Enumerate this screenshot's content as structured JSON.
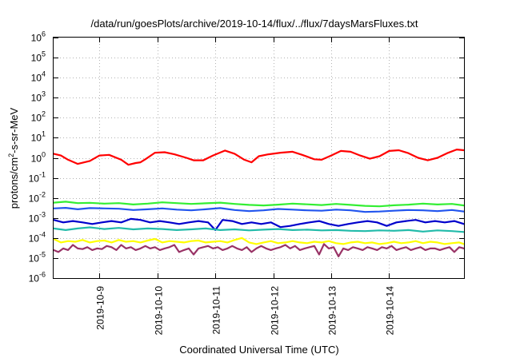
{
  "chart_data": {
    "type": "line",
    "title": "/data/run/goesPlots/archive/2019-10-14/flux/../flux/7daysMarsFluxes.txt",
    "xlabel": "Coordinated Universal Time (UTC)",
    "ylabel": {
      "base": "protons/cm",
      "sup": "2",
      "rest": "-s-sr-MeV"
    },
    "yscale": "log",
    "ylim": [
      -6,
      6
    ],
    "xlim": [
      "2019-10-08T05:00",
      "2019-10-15T07:00"
    ],
    "x_ticks": [
      "2019-10-9",
      "2019-10-10",
      "2019-10-11",
      "2019-10-12",
      "2019-10-13",
      "2019-10-14"
    ],
    "y_ticks": [
      {
        "exp": -6,
        "label": "10",
        "sup": "-6"
      },
      {
        "exp": -5,
        "label": "10",
        "sup": "-5"
      },
      {
        "exp": -4,
        "label": "10",
        "sup": "-4"
      },
      {
        "exp": -3,
        "label": "10",
        "sup": "-3"
      },
      {
        "exp": -2,
        "label": "10",
        "sup": "-2"
      },
      {
        "exp": -1,
        "label": "10",
        "sup": "-1"
      },
      {
        "exp": 0,
        "label": "10",
        "sup": "0"
      },
      {
        "exp": 1,
        "label": "10",
        "sup": "1"
      },
      {
        "exp": 2,
        "label": "10",
        "sup": "2"
      },
      {
        "exp": 3,
        "label": "10",
        "sup": "3"
      },
      {
        "exp": 4,
        "label": "10",
        "sup": "4"
      },
      {
        "exp": 5,
        "label": "10",
        "sup": "5"
      },
      {
        "exp": 6,
        "label": "10",
        "sup": "6"
      }
    ],
    "grid": true,
    "series": [
      {
        "color": "#ff0000",
        "x": [
          "2019-10-08T05:00",
          "2019-10-08T08:00",
          "2019-10-08T11:00",
          "2019-10-08T15:00",
          "2019-10-08T20:00",
          "2019-10-09T00:00",
          "2019-10-09T04:00",
          "2019-10-09T09:00",
          "2019-10-09T12:00",
          "2019-10-09T15:00",
          "2019-10-09T17:00",
          "2019-10-09T19:00",
          "2019-10-09T23:00",
          "2019-10-10T03:00",
          "2019-10-10T07:00",
          "2019-10-10T12:00",
          "2019-10-10T15:00",
          "2019-10-10T19:00",
          "2019-10-10T23:00",
          "2019-10-11T04:00",
          "2019-10-11T08:00",
          "2019-10-11T12:00",
          "2019-10-11T15:00",
          "2019-10-11T18:00",
          "2019-10-11T22:00",
          "2019-10-12T03:00",
          "2019-10-12T08:00",
          "2019-10-12T12:00",
          "2019-10-12T17:00",
          "2019-10-12T20:00",
          "2019-10-13T00:00",
          "2019-10-13T04:00",
          "2019-10-13T08:00",
          "2019-10-13T12:00",
          "2019-10-13T16:00",
          "2019-10-13T20:00",
          "2019-10-14T00:00",
          "2019-10-14T04:00",
          "2019-10-14T08:00",
          "2019-10-14T12:00",
          "2019-10-14T16:00",
          "2019-10-14T20:00",
          "2019-10-15T00:00",
          "2019-10-15T04:00",
          "2019-10-15T07:00"
        ],
        "y": [
          1.6,
          1.3,
          0.8,
          0.5,
          0.7,
          1.3,
          1.4,
          0.8,
          0.45,
          0.55,
          0.6,
          0.85,
          1.8,
          1.9,
          1.5,
          1.0,
          0.75,
          0.75,
          1.3,
          2.3,
          1.6,
          0.8,
          0.6,
          1.2,
          1.5,
          1.8,
          2.0,
          1.4,
          0.85,
          0.8,
          1.3,
          2.2,
          2.0,
          1.3,
          0.9,
          1.2,
          2.2,
          2.4,
          1.7,
          1.0,
          0.75,
          1.0,
          1.7,
          2.6,
          2.4
        ]
      },
      {
        "color": "#33ee33",
        "x": [
          "2019-10-08T05:00",
          "2019-10-08T10:00",
          "2019-10-08T15:00",
          "2019-10-08T20:00",
          "2019-10-09T02:00",
          "2019-10-09T08:00",
          "2019-10-09T14:00",
          "2019-10-09T20:00",
          "2019-10-10T02:00",
          "2019-10-10T08:00",
          "2019-10-10T14:00",
          "2019-10-10T20:00",
          "2019-10-11T02:00",
          "2019-10-11T08:00",
          "2019-10-11T14:00",
          "2019-10-11T20:00",
          "2019-10-12T02:00",
          "2019-10-12T08:00",
          "2019-10-12T14:00",
          "2019-10-12T20:00",
          "2019-10-13T02:00",
          "2019-10-13T08:00",
          "2019-10-13T14:00",
          "2019-10-13T20:00",
          "2019-10-14T02:00",
          "2019-10-14T08:00",
          "2019-10-14T14:00",
          "2019-10-14T20:00",
          "2019-10-15T02:00",
          "2019-10-15T07:00"
        ],
        "y": [
          0.0058,
          0.0065,
          0.0055,
          0.0057,
          0.0052,
          0.0055,
          0.0047,
          0.0052,
          0.006,
          0.0055,
          0.005,
          0.0054,
          0.0058,
          0.005,
          0.0045,
          0.0042,
          0.0046,
          0.0052,
          0.0048,
          0.0044,
          0.005,
          0.0045,
          0.004,
          0.0038,
          0.0043,
          0.0046,
          0.0052,
          0.0047,
          0.005,
          0.0042
        ]
      },
      {
        "color": "#2255ee",
        "x": [
          "2019-10-08T05:00",
          "2019-10-08T10:00",
          "2019-10-08T15:00",
          "2019-10-08T20:00",
          "2019-10-09T02:00",
          "2019-10-09T08:00",
          "2019-10-09T14:00",
          "2019-10-09T20:00",
          "2019-10-10T02:00",
          "2019-10-10T08:00",
          "2019-10-10T14:00",
          "2019-10-10T20:00",
          "2019-10-11T02:00",
          "2019-10-11T08:00",
          "2019-10-11T14:00",
          "2019-10-11T20:00",
          "2019-10-12T02:00",
          "2019-10-12T08:00",
          "2019-10-12T14:00",
          "2019-10-12T20:00",
          "2019-10-13T02:00",
          "2019-10-13T08:00",
          "2019-10-13T14:00",
          "2019-10-13T20:00",
          "2019-10-14T02:00",
          "2019-10-14T08:00",
          "2019-10-14T14:00",
          "2019-10-14T20:00",
          "2019-10-15T02:00",
          "2019-10-15T07:00"
        ],
        "y": [
          0.003,
          0.0032,
          0.0027,
          0.0031,
          0.003,
          0.0029,
          0.0025,
          0.0027,
          0.003,
          0.0026,
          0.0024,
          0.0027,
          0.0031,
          0.0025,
          0.0022,
          0.0024,
          0.0028,
          0.0026,
          0.0024,
          0.0023,
          0.0026,
          0.0024,
          0.002,
          0.0021,
          0.0023,
          0.0025,
          0.0024,
          0.0022,
          0.0025,
          0.0021
        ]
      },
      {
        "color": "#0000cc",
        "x": [
          "2019-10-08T05:00",
          "2019-10-08T09:00",
          "2019-10-08T13:00",
          "2019-10-08T17:00",
          "2019-10-08T21:00",
          "2019-10-09T01:00",
          "2019-10-09T05:00",
          "2019-10-09T09:00",
          "2019-10-09T13:00",
          "2019-10-09T17:00",
          "2019-10-09T21:00",
          "2019-10-10T01:00",
          "2019-10-10T05:00",
          "2019-10-10T09:00",
          "2019-10-10T13:00",
          "2019-10-10T17:00",
          "2019-10-10T21:00",
          "2019-10-11T00:00",
          "2019-10-11T03:00",
          "2019-10-11T07:00",
          "2019-10-11T11:00",
          "2019-10-11T15:00",
          "2019-10-11T19:00",
          "2019-10-11T23:00",
          "2019-10-12T03:00",
          "2019-10-12T07:00",
          "2019-10-12T11:00",
          "2019-10-12T15:00",
          "2019-10-12T19:00",
          "2019-10-12T23:00",
          "2019-10-13T03:00",
          "2019-10-13T07:00",
          "2019-10-13T11:00",
          "2019-10-13T15:00",
          "2019-10-13T19:00",
          "2019-10-13T23:00",
          "2019-10-14T03:00",
          "2019-10-14T07:00",
          "2019-10-14T11:00",
          "2019-10-14T15:00",
          "2019-10-14T19:00",
          "2019-10-14T23:00",
          "2019-10-15T03:00",
          "2019-10-15T07:00"
        ],
        "y": [
          0.0008,
          0.0006,
          0.0007,
          0.0006,
          0.0005,
          0.0006,
          0.0007,
          0.0006,
          0.0009,
          0.0008,
          0.0006,
          0.0007,
          0.0006,
          0.0005,
          0.0006,
          0.0007,
          0.0006,
          0.00025,
          0.0008,
          0.0007,
          0.0005,
          0.0006,
          0.0005,
          0.0006,
          0.00035,
          0.0004,
          0.0005,
          0.0006,
          0.0007,
          0.0005,
          0.0004,
          0.0005,
          0.0006,
          0.0007,
          0.0006,
          0.0004,
          0.0006,
          0.0007,
          0.0008,
          0.0006,
          0.0007,
          0.0006,
          0.0007,
          0.0005
        ]
      },
      {
        "color": "#22bbaa",
        "x": [
          "2019-10-08T05:00",
          "2019-10-08T10:00",
          "2019-10-08T15:00",
          "2019-10-08T20:00",
          "2019-10-09T02:00",
          "2019-10-09T08:00",
          "2019-10-09T14:00",
          "2019-10-09T20:00",
          "2019-10-10T02:00",
          "2019-10-10T08:00",
          "2019-10-10T14:00",
          "2019-10-10T20:00",
          "2019-10-11T02:00",
          "2019-10-11T08:00",
          "2019-10-11T14:00",
          "2019-10-11T20:00",
          "2019-10-12T02:00",
          "2019-10-12T08:00",
          "2019-10-12T14:00",
          "2019-10-12T20:00",
          "2019-10-13T02:00",
          "2019-10-13T08:00",
          "2019-10-13T14:00",
          "2019-10-13T20:00",
          "2019-10-14T02:00",
          "2019-10-14T08:00",
          "2019-10-14T14:00",
          "2019-10-14T20:00",
          "2019-10-15T02:00",
          "2019-10-15T07:00"
        ],
        "y": [
          0.0003,
          0.00025,
          0.0003,
          0.00034,
          0.00028,
          0.00032,
          0.00027,
          0.0003,
          0.00028,
          0.00025,
          0.00027,
          0.0003,
          0.00025,
          0.00027,
          0.00024,
          0.00026,
          0.00028,
          0.00025,
          0.00026,
          0.00024,
          0.00025,
          0.00023,
          0.00022,
          0.00024,
          0.00023,
          0.00025,
          0.00021,
          0.00024,
          0.00022,
          0.0002
        ]
      },
      {
        "color": "#ffff00",
        "x": [
          "2019-10-08T05:00",
          "2019-10-08T08:00",
          "2019-10-08T11:00",
          "2019-10-08T14:00",
          "2019-10-08T17:00",
          "2019-10-08T20:00",
          "2019-10-08T23:00",
          "2019-10-09T02:00",
          "2019-10-09T05:00",
          "2019-10-09T08:00",
          "2019-10-09T11:00",
          "2019-10-09T14:00",
          "2019-10-09T17:00",
          "2019-10-09T20:00",
          "2019-10-09T23:00",
          "2019-10-10T02:00",
          "2019-10-10T05:00",
          "2019-10-10T08:00",
          "2019-10-10T11:00",
          "2019-10-10T14:00",
          "2019-10-10T17:00",
          "2019-10-10T20:00",
          "2019-10-10T23:00",
          "2019-10-11T02:00",
          "2019-10-11T05:00",
          "2019-10-11T08:00",
          "2019-10-11T11:00",
          "2019-10-11T14:00",
          "2019-10-11T17:00",
          "2019-10-11T20:00",
          "2019-10-11T23:00",
          "2019-10-12T02:00",
          "2019-10-12T05:00",
          "2019-10-12T08:00",
          "2019-10-12T11:00",
          "2019-10-12T14:00",
          "2019-10-12T17:00",
          "2019-10-12T20:00",
          "2019-10-12T23:00",
          "2019-10-13T02:00",
          "2019-10-13T05:00",
          "2019-10-13T08:00",
          "2019-10-13T11:00",
          "2019-10-13T14:00",
          "2019-10-13T17:00",
          "2019-10-13T20:00",
          "2019-10-13T23:00",
          "2019-10-14T02:00",
          "2019-10-14T05:00",
          "2019-10-14T08:00",
          "2019-10-14T11:00",
          "2019-10-14T14:00",
          "2019-10-14T17:00",
          "2019-10-14T20:00",
          "2019-10-14T23:00",
          "2019-10-15T02:00",
          "2019-10-15T05:00",
          "2019-10-15T07:00"
        ],
        "y": [
          9e-05,
          6e-05,
          7e-05,
          6.5e-05,
          8e-05,
          6e-05,
          7e-05,
          7.5e-05,
          6e-05,
          8e-05,
          6.5e-05,
          7e-05,
          6e-05,
          7.5e-05,
          9e-05,
          6e-05,
          7e-05,
          6.5e-05,
          6e-05,
          7e-05,
          7.5e-05,
          6e-05,
          6.5e-05,
          7e-05,
          6e-05,
          8e-05,
          0.0001,
          6e-05,
          5e-05,
          6e-05,
          7e-05,
          5.5e-05,
          6e-05,
          7e-05,
          6e-05,
          5.5e-05,
          6.5e-05,
          6e-05,
          7e-05,
          5.5e-05,
          5e-05,
          6e-05,
          6.5e-05,
          5.5e-05,
          6e-05,
          5e-05,
          5.5e-05,
          6.5e-05,
          5.5e-05,
          6e-05,
          7e-05,
          5.5e-05,
          6.5e-05,
          6e-05,
          5e-05,
          5.5e-05,
          6e-05,
          5e-05
        ]
      },
      {
        "color": "#993366",
        "x": [
          "2019-10-08T05:00",
          "2019-10-08T07:00",
          "2019-10-08T09:00",
          "2019-10-08T11:00",
          "2019-10-08T13:00",
          "2019-10-08T15:00",
          "2019-10-08T17:00",
          "2019-10-08T19:00",
          "2019-10-08T21:00",
          "2019-10-08T23:00",
          "2019-10-09T01:00",
          "2019-10-09T03:00",
          "2019-10-09T05:00",
          "2019-10-09T07:00",
          "2019-10-09T09:00",
          "2019-10-09T11:00",
          "2019-10-09T13:00",
          "2019-10-09T15:00",
          "2019-10-09T17:00",
          "2019-10-09T19:00",
          "2019-10-09T21:00",
          "2019-10-09T23:00",
          "2019-10-10T01:00",
          "2019-10-10T03:00",
          "2019-10-10T05:00",
          "2019-10-10T07:00",
          "2019-10-10T09:00",
          "2019-10-10T11:00",
          "2019-10-10T13:00",
          "2019-10-10T15:00",
          "2019-10-10T17:00",
          "2019-10-10T19:00",
          "2019-10-10T21:00",
          "2019-10-10T23:00",
          "2019-10-11T01:00",
          "2019-10-11T03:00",
          "2019-10-11T05:00",
          "2019-10-11T07:00",
          "2019-10-11T09:00",
          "2019-10-11T11:00",
          "2019-10-11T13:00",
          "2019-10-11T15:00",
          "2019-10-11T17:00",
          "2019-10-11T19:00",
          "2019-10-11T21:00",
          "2019-10-11T23:00",
          "2019-10-12T01:00",
          "2019-10-12T03:00",
          "2019-10-12T05:00",
          "2019-10-12T07:00",
          "2019-10-12T09:00",
          "2019-10-12T11:00",
          "2019-10-12T13:00",
          "2019-10-12T15:00",
          "2019-10-12T17:00",
          "2019-10-12T19:00",
          "2019-10-12T21:00",
          "2019-10-12T23:00",
          "2019-10-13T01:00",
          "2019-10-13T03:00",
          "2019-10-13T05:00",
          "2019-10-13T07:00",
          "2019-10-13T09:00",
          "2019-10-13T11:00",
          "2019-10-13T13:00",
          "2019-10-13T15:00",
          "2019-10-13T17:00",
          "2019-10-13T19:00",
          "2019-10-13T21:00",
          "2019-10-13T23:00",
          "2019-10-14T01:00",
          "2019-10-14T03:00",
          "2019-10-14T05:00",
          "2019-10-14T07:00",
          "2019-10-14T09:00",
          "2019-10-14T11:00",
          "2019-10-14T13:00",
          "2019-10-14T15:00",
          "2019-10-14T17:00",
          "2019-10-14T19:00",
          "2019-10-14T21:00",
          "2019-10-14T23:00",
          "2019-10-15T01:00",
          "2019-10-15T03:00",
          "2019-10-15T05:00",
          "2019-10-15T07:00"
        ],
        "y": [
          2.5e-05,
          2e-05,
          3e-05,
          2.5e-05,
          4.5e-05,
          3e-05,
          2.8e-05,
          3.5e-05,
          2.5e-05,
          3e-05,
          2.8e-05,
          4e-05,
          3.5e-05,
          2.5e-05,
          4.5e-05,
          3e-05,
          3.5e-05,
          2.5e-05,
          3e-05,
          4e-05,
          3e-05,
          3.5e-05,
          2.5e-05,
          3e-05,
          3.5e-05,
          4.5e-05,
          2e-05,
          2.5e-05,
          3e-05,
          1.5e-05,
          3e-05,
          3.5e-05,
          4e-05,
          3e-05,
          3.5e-05,
          2.5e-05,
          3e-05,
          4e-05,
          3e-05,
          2.5e-05,
          3.5e-05,
          2e-05,
          3e-05,
          4e-05,
          3e-05,
          2.5e-05,
          3e-05,
          3.5e-05,
          4.5e-05,
          3e-05,
          4e-05,
          2.5e-05,
          3e-05,
          3.5e-05,
          4e-05,
          1.5e-05,
          5e-05,
          3e-05,
          3.5e-05,
          1.2e-05,
          3e-05,
          2.5e-05,
          3.5e-05,
          3e-05,
          2.5e-05,
          3.5e-05,
          3e-05,
          2.5e-05,
          3.5e-05,
          3e-05,
          4e-05,
          2.5e-05,
          3e-05,
          3.5e-05,
          2.5e-05,
          3e-05,
          3.5e-05,
          2.5e-05,
          3e-05,
          3e-05,
          2.5e-05,
          3e-05,
          3.5e-05,
          2e-05,
          3.5e-05,
          3e-05
        ]
      }
    ]
  }
}
